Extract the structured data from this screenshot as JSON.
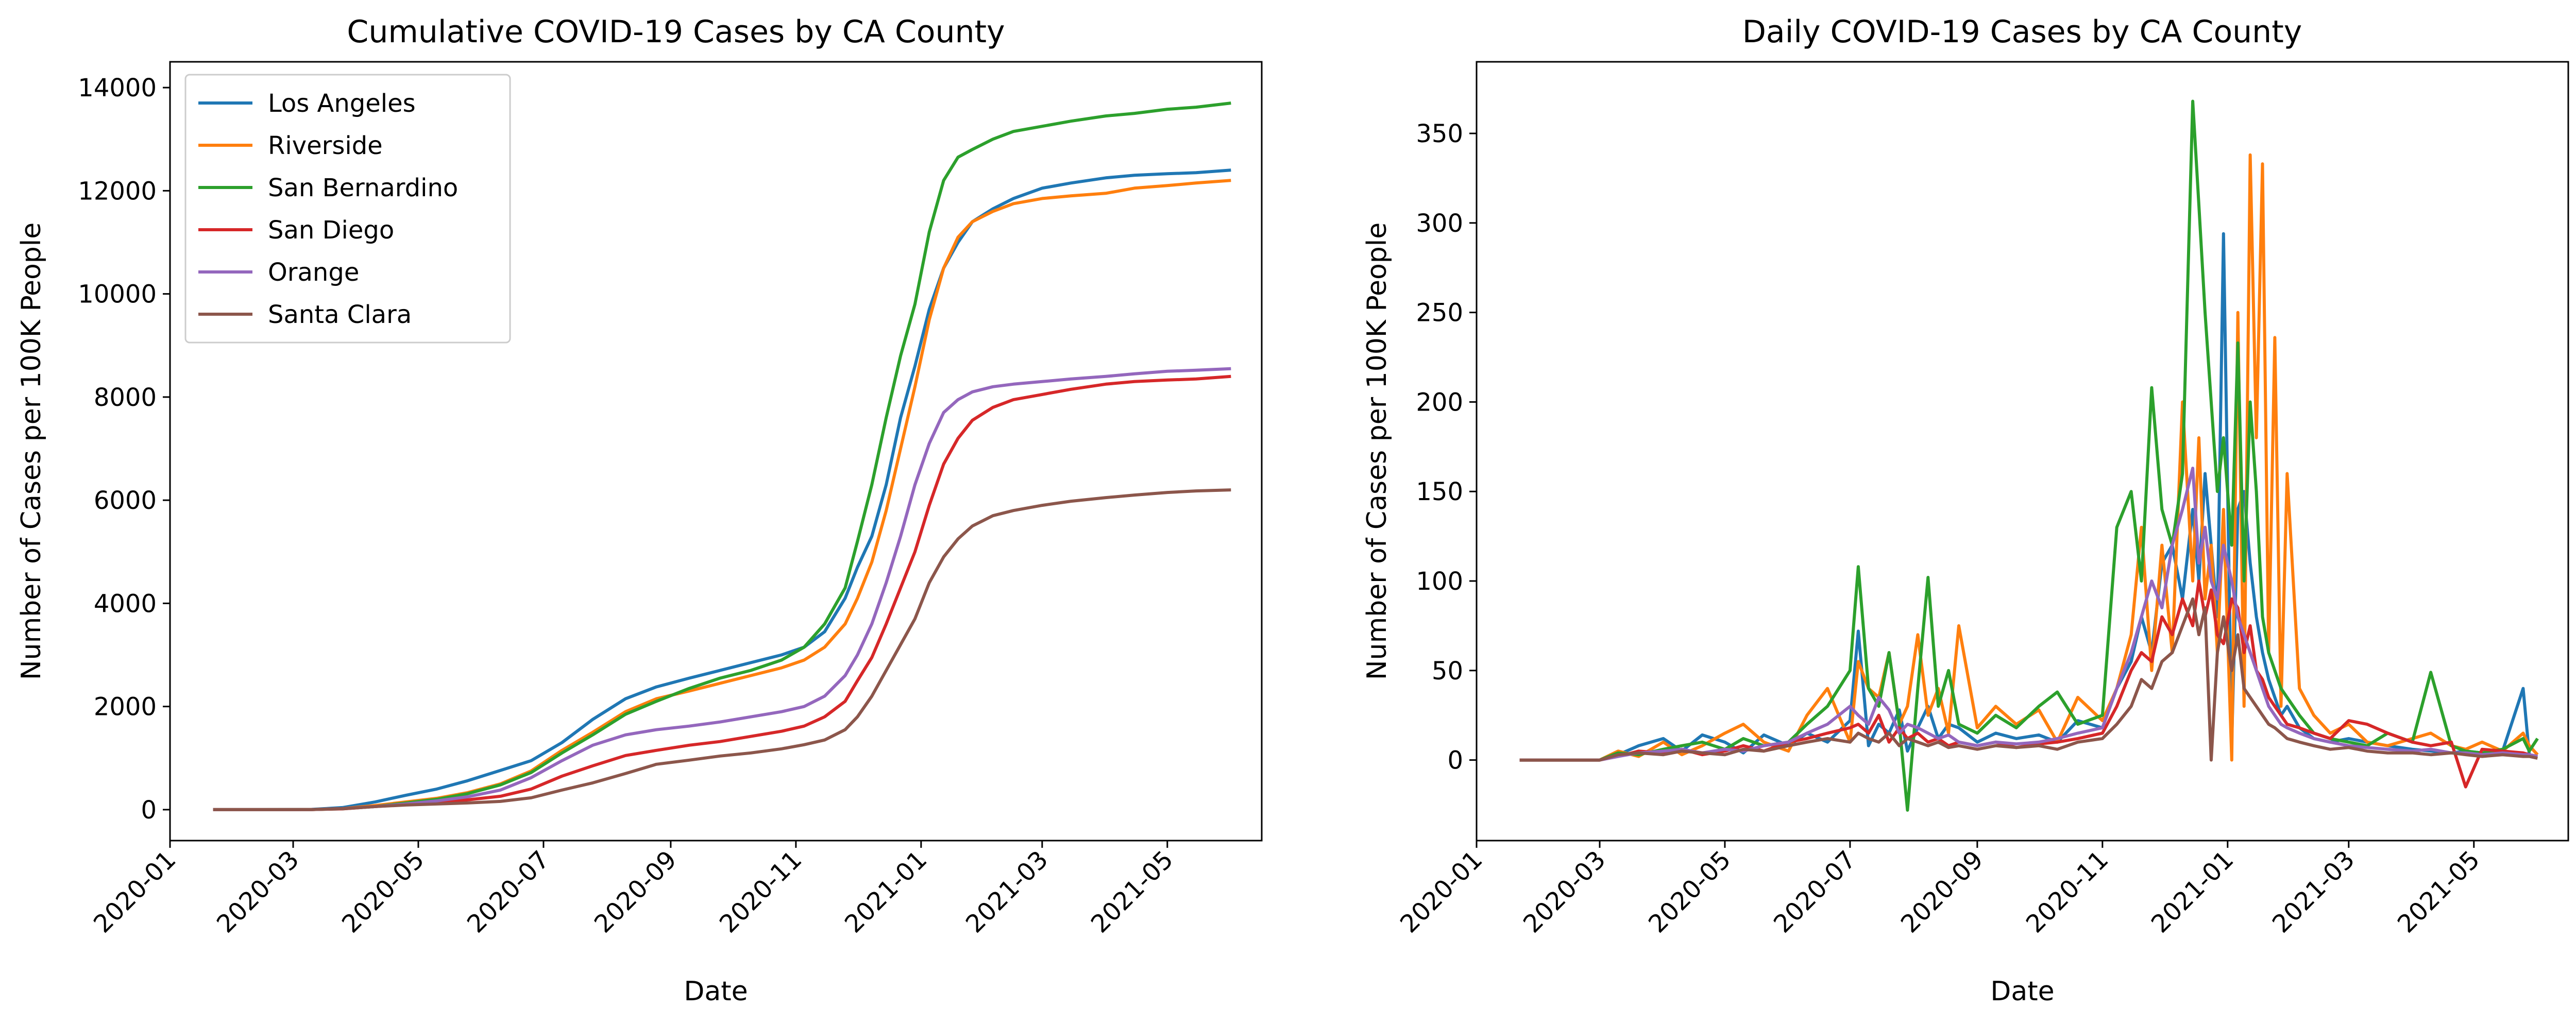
{
  "chart_data": [
    {
      "type": "line",
      "title": "Cumulative COVID-19 Cases by CA County",
      "xlabel": "Date",
      "ylabel": "Number of Cases per 100K People",
      "xlim": [
        "2020-01-01",
        "2021-06-16"
      ],
      "ylim": [
        -600,
        14500
      ],
      "x_ticks": [
        "2020-01",
        "2020-03",
        "2020-05",
        "2020-07",
        "2020-09",
        "2020-11",
        "2021-01",
        "2021-03",
        "2021-05"
      ],
      "y_ticks": [
        0,
        2000,
        4000,
        6000,
        8000,
        10000,
        12000,
        14000
      ],
      "legend": "upper-left",
      "x": [
        "2020-01-22",
        "2020-02-15",
        "2020-03-10",
        "2020-03-25",
        "2020-04-10",
        "2020-04-25",
        "2020-05-10",
        "2020-05-25",
        "2020-06-10",
        "2020-06-25",
        "2020-07-10",
        "2020-07-25",
        "2020-08-10",
        "2020-08-25",
        "2020-09-10",
        "2020-09-25",
        "2020-10-10",
        "2020-10-25",
        "2020-11-05",
        "2020-11-15",
        "2020-11-25",
        "2020-12-01",
        "2020-12-08",
        "2020-12-15",
        "2020-12-22",
        "2020-12-29",
        "2021-01-05",
        "2021-01-12",
        "2021-01-19",
        "2021-01-26",
        "2021-02-05",
        "2021-02-15",
        "2021-03-01",
        "2021-03-15",
        "2021-04-01",
        "2021-04-15",
        "2021-05-01",
        "2021-05-15",
        "2021-06-01"
      ],
      "series": [
        {
          "name": "Los Angeles",
          "color": "#1f77b4",
          "values": [
            0,
            0,
            5,
            40,
            150,
            280,
            400,
            560,
            760,
            950,
            1300,
            1750,
            2150,
            2380,
            2550,
            2700,
            2850,
            3000,
            3150,
            3450,
            4100,
            4700,
            5300,
            6300,
            7600,
            8600,
            9700,
            10500,
            11000,
            11400,
            11650,
            11850,
            12050,
            12150,
            12250,
            12300,
            12330,
            12350,
            12400
          ]
        },
        {
          "name": "Riverside",
          "color": "#ff7f0e",
          "values": [
            0,
            0,
            2,
            20,
            80,
            150,
            220,
            330,
            500,
            750,
            1150,
            1500,
            1900,
            2150,
            2300,
            2450,
            2600,
            2750,
            2900,
            3150,
            3600,
            4100,
            4800,
            5800,
            7000,
            8200,
            9500,
            10500,
            11100,
            11400,
            11600,
            11750,
            11850,
            11900,
            11950,
            12050,
            12100,
            12150,
            12200
          ]
        },
        {
          "name": "San Bernardino",
          "color": "#2ca02c",
          "values": [
            0,
            0,
            3,
            15,
            60,
            130,
            200,
            310,
            480,
            720,
            1100,
            1450,
            1850,
            2100,
            2350,
            2550,
            2700,
            2900,
            3150,
            3600,
            4300,
            5200,
            6300,
            7600,
            8800,
            9800,
            11200,
            12200,
            12650,
            12800,
            13000,
            13150,
            13250,
            13350,
            13450,
            13500,
            13580,
            13620,
            13700
          ]
        },
        {
          "name": "San Diego",
          "color": "#d62728",
          "values": [
            0,
            0,
            2,
            15,
            60,
            100,
            140,
            190,
            260,
            400,
            650,
            850,
            1050,
            1150,
            1250,
            1320,
            1420,
            1520,
            1620,
            1800,
            2100,
            2500,
            2950,
            3600,
            4300,
            5000,
            5900,
            6700,
            7200,
            7550,
            7800,
            7950,
            8050,
            8150,
            8250,
            8300,
            8330,
            8350,
            8400
          ]
        },
        {
          "name": "Orange",
          "color": "#9467bd",
          "values": [
            0,
            0,
            2,
            20,
            60,
            110,
            170,
            250,
            380,
            620,
            950,
            1250,
            1450,
            1550,
            1620,
            1700,
            1800,
            1900,
            2000,
            2200,
            2600,
            3000,
            3600,
            4400,
            5300,
            6300,
            7100,
            7700,
            7950,
            8100,
            8200,
            8250,
            8300,
            8350,
            8400,
            8450,
            8500,
            8520,
            8550
          ]
        },
        {
          "name": "Santa Clara",
          "color": "#8c564b",
          "values": [
            0,
            0,
            2,
            20,
            60,
            90,
            110,
            130,
            160,
            230,
            380,
            520,
            700,
            880,
            960,
            1040,
            1100,
            1180,
            1260,
            1350,
            1550,
            1800,
            2200,
            2700,
            3200,
            3700,
            4400,
            4900,
            5250,
            5500,
            5700,
            5800,
            5900,
            5980,
            6050,
            6100,
            6150,
            6180,
            6200
          ]
        }
      ]
    },
    {
      "type": "line",
      "title": "Daily COVID-19 Cases by CA County",
      "xlabel": "Date",
      "ylabel": "Number of Cases per 100K People",
      "xlim": [
        "2020-01-01",
        "2021-06-16"
      ],
      "ylim": [
        -45,
        390
      ],
      "x_ticks": [
        "2020-01",
        "2020-03",
        "2020-05",
        "2020-07",
        "2020-09",
        "2020-11",
        "2021-01",
        "2021-03",
        "2021-05"
      ],
      "y_ticks": [
        0,
        50,
        100,
        150,
        200,
        250,
        300,
        350
      ],
      "x": [
        "2020-01-22",
        "2020-02-15",
        "2020-03-01",
        "2020-03-10",
        "2020-03-20",
        "2020-04-01",
        "2020-04-10",
        "2020-04-20",
        "2020-05-01",
        "2020-05-10",
        "2020-05-20",
        "2020-06-01",
        "2020-06-10",
        "2020-06-20",
        "2020-07-01",
        "2020-07-05",
        "2020-07-10",
        "2020-07-15",
        "2020-07-20",
        "2020-07-25",
        "2020-07-29",
        "2020-08-03",
        "2020-08-08",
        "2020-08-13",
        "2020-08-18",
        "2020-08-23",
        "2020-09-01",
        "2020-09-10",
        "2020-09-20",
        "2020-10-01",
        "2020-10-10",
        "2020-10-20",
        "2020-11-01",
        "2020-11-08",
        "2020-11-15",
        "2020-11-20",
        "2020-11-25",
        "2020-11-30",
        "2020-12-05",
        "2020-12-10",
        "2020-12-15",
        "2020-12-18",
        "2020-12-21",
        "2020-12-24",
        "2020-12-27",
        "2020-12-30",
        "2021-01-03",
        "2021-01-06",
        "2021-01-09",
        "2021-01-12",
        "2021-01-15",
        "2021-01-18",
        "2021-01-21",
        "2021-01-24",
        "2021-01-27",
        "2021-01-30",
        "2021-02-05",
        "2021-02-12",
        "2021-02-20",
        "2021-03-01",
        "2021-03-10",
        "2021-03-20",
        "2021-04-01",
        "2021-04-10",
        "2021-04-20",
        "2021-04-27",
        "2021-05-05",
        "2021-05-15",
        "2021-05-25",
        "2021-05-28",
        "2021-06-01"
      ],
      "series": [
        {
          "name": "Los Angeles",
          "color": "#1f77b4",
          "values": [
            0,
            0,
            0,
            3,
            8,
            12,
            5,
            14,
            10,
            4,
            14,
            8,
            15,
            10,
            22,
            72,
            8,
            20,
            15,
            28,
            5,
            18,
            30,
            12,
            20,
            18,
            10,
            15,
            12,
            14,
            10,
            22,
            18,
            40,
            55,
            80,
            60,
            110,
            120,
            90,
            140,
            100,
            160,
            120,
            80,
            294,
            10,
            140,
            150,
            110,
            80,
            60,
            45,
            35,
            25,
            30,
            18,
            12,
            10,
            12,
            10,
            8,
            6,
            5,
            4,
            5,
            4,
            5,
            40,
            3,
            2
          ]
        },
        {
          "name": "Riverside",
          "color": "#ff7f0e",
          "values": [
            0,
            0,
            0,
            5,
            2,
            10,
            3,
            8,
            15,
            20,
            10,
            5,
            25,
            40,
            10,
            55,
            40,
            35,
            60,
            20,
            30,
            70,
            25,
            40,
            15,
            75,
            18,
            30,
            20,
            28,
            10,
            35,
            22,
            40,
            70,
            130,
            50,
            120,
            60,
            200,
            100,
            180,
            90,
            120,
            60,
            140,
            0,
            250,
            30,
            338,
            180,
            333,
            60,
            236,
            30,
            160,
            40,
            25,
            15,
            20,
            10,
            8,
            12,
            15,
            8,
            6,
            10,
            5,
            15,
            8,
            3
          ]
        },
        {
          "name": "San Bernardino",
          "color": "#2ca02c",
          "values": [
            0,
            0,
            0,
            4,
            3,
            6,
            8,
            10,
            6,
            12,
            8,
            10,
            20,
            30,
            50,
            108,
            40,
            30,
            60,
            20,
            -28,
            40,
            102,
            30,
            50,
            20,
            15,
            25,
            18,
            30,
            38,
            20,
            25,
            130,
            150,
            100,
            208,
            140,
            120,
            160,
            368,
            310,
            250,
            200,
            150,
            180,
            120,
            233,
            100,
            200,
            150,
            80,
            60,
            50,
            40,
            35,
            25,
            15,
            12,
            10,
            8,
            15,
            10,
            49,
            8,
            5,
            4,
            6,
            12,
            5,
            12
          ]
        },
        {
          "name": "San Diego",
          "color": "#d62728",
          "values": [
            0,
            0,
            0,
            2,
            5,
            4,
            6,
            3,
            5,
            8,
            5,
            10,
            12,
            15,
            18,
            20,
            15,
            25,
            10,
            18,
            12,
            15,
            10,
            12,
            8,
            10,
            8,
            10,
            7,
            9,
            10,
            12,
            15,
            30,
            50,
            60,
            55,
            80,
            70,
            90,
            75,
            100,
            80,
            95,
            70,
            65,
            90,
            85,
            60,
            75,
            50,
            45,
            35,
            30,
            25,
            20,
            18,
            15,
            12,
            22,
            20,
            15,
            10,
            8,
            10,
            -15,
            6,
            5,
            4,
            3,
            2
          ]
        },
        {
          "name": "Orange",
          "color": "#9467bd",
          "values": [
            0,
            0,
            0,
            2,
            4,
            5,
            6,
            4,
            6,
            5,
            8,
            10,
            15,
            20,
            30,
            25,
            20,
            35,
            28,
            15,
            20,
            18,
            15,
            12,
            14,
            10,
            8,
            10,
            9,
            10,
            12,
            15,
            18,
            40,
            60,
            80,
            100,
            85,
            120,
            140,
            163,
            110,
            130,
            100,
            90,
            120,
            100,
            80,
            70,
            60,
            50,
            40,
            30,
            25,
            20,
            18,
            15,
            12,
            10,
            8,
            7,
            6,
            5,
            6,
            4,
            4,
            3,
            4,
            3,
            3,
            2
          ]
        },
        {
          "name": "Santa Clara",
          "color": "#8c564b",
          "values": [
            0,
            0,
            0,
            3,
            4,
            3,
            5,
            4,
            3,
            6,
            5,
            8,
            10,
            12,
            10,
            15,
            12,
            10,
            15,
            8,
            12,
            10,
            8,
            10,
            7,
            8,
            6,
            8,
            7,
            8,
            6,
            10,
            12,
            20,
            30,
            45,
            40,
            55,
            60,
            75,
            90,
            70,
            85,
            0,
            60,
            80,
            50,
            70,
            40,
            35,
            30,
            25,
            20,
            18,
            15,
            12,
            10,
            8,
            6,
            7,
            5,
            4,
            4,
            3,
            4,
            3,
            2,
            3,
            2,
            2,
            1
          ]
        }
      ]
    }
  ]
}
